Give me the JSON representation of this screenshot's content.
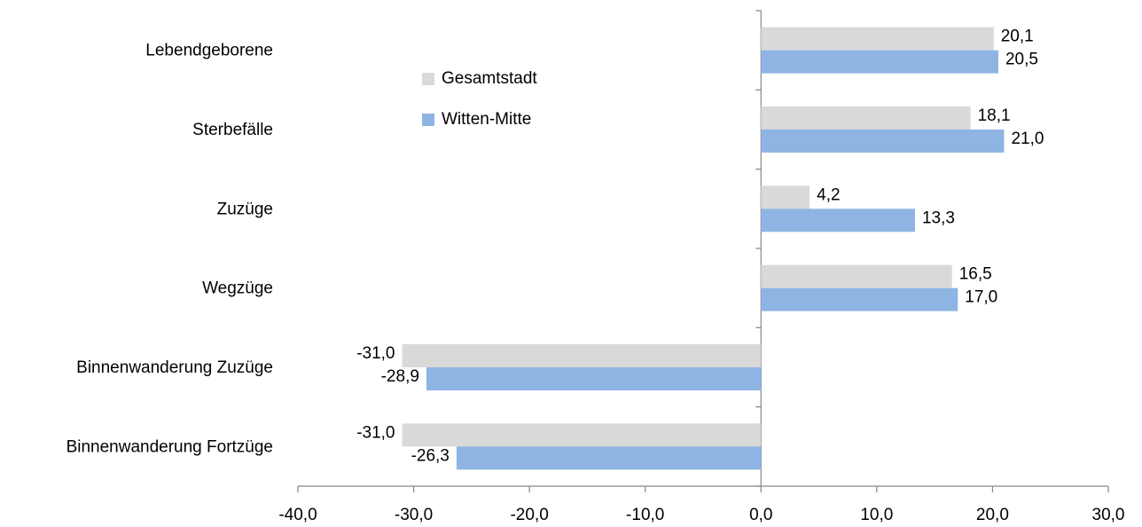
{
  "chart_data": {
    "type": "barh",
    "categories": [
      "Lebendgeborene",
      "Sterbefälle",
      "Zuzüge",
      "Wegzüge",
      "Binnenwanderung Zuzüge",
      "Binnenwanderung Fortzüge"
    ],
    "series": [
      {
        "name": "Gesamtstadt",
        "color": "#d9d9d9",
        "values": [
          20.1,
          18.1,
          4.2,
          16.5,
          -31.0,
          -31.0
        ],
        "value_labels": [
          "20,1",
          "18,1",
          "4,2",
          "16,5",
          "-31,0",
          "-31,0"
        ]
      },
      {
        "name": "Witten-Mitte",
        "color": "#8eb4e3",
        "values": [
          20.5,
          21.0,
          13.3,
          17.0,
          -28.9,
          -26.3
        ],
        "value_labels": [
          "20,5",
          "21,0",
          "13,3",
          "17,0",
          "-28,9",
          "-26,3"
        ]
      }
    ],
    "xlim": [
      -40,
      30
    ],
    "xticks": [
      {
        "value": -40,
        "label": "-40,0"
      },
      {
        "value": -30,
        "label": "-30,0"
      },
      {
        "value": -20,
        "label": "-20,0"
      },
      {
        "value": -10,
        "label": "-10,0"
      },
      {
        "value": 0,
        "label": "0,0"
      },
      {
        "value": 10,
        "label": "10,0"
      },
      {
        "value": 20,
        "label": "20,0"
      },
      {
        "value": 30,
        "label": "30,0"
      }
    ],
    "legend": "upper-center",
    "grid": false
  }
}
